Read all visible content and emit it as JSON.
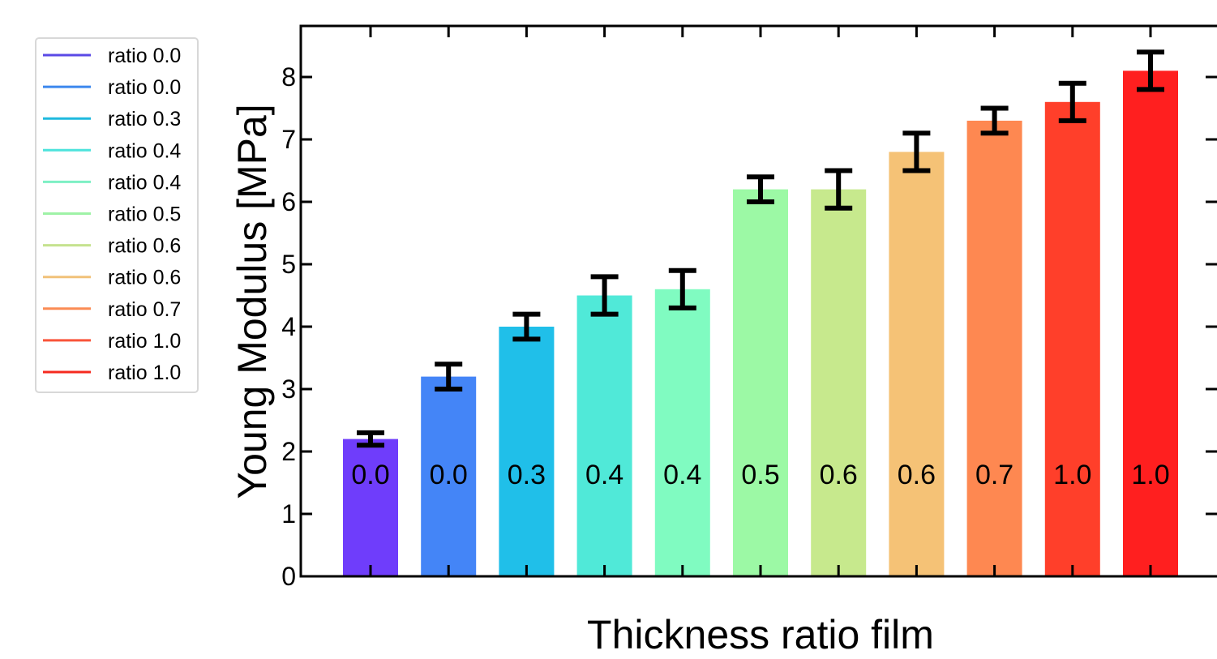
{
  "chart_data": {
    "type": "bar",
    "title": "",
    "xlabel": "Thickness ratio film",
    "ylabel": "Young Modulus [MPa]",
    "ylim": [
      0,
      8.8
    ],
    "yticks": [
      0,
      1,
      2,
      3,
      4,
      5,
      6,
      7,
      8
    ],
    "grid": false,
    "legend_position": "outside-left",
    "categories": [
      "0.0",
      "0.0",
      "0.3",
      "0.4",
      "0.4",
      "0.5",
      "0.6",
      "0.6",
      "0.7",
      "1.0",
      "1.0"
    ],
    "values": [
      2.2,
      3.2,
      4.0,
      4.5,
      4.6,
      6.2,
      6.2,
      6.8,
      7.3,
      7.6,
      8.1
    ],
    "errors": [
      0.1,
      0.2,
      0.2,
      0.3,
      0.3,
      0.2,
      0.3,
      0.3,
      0.2,
      0.3,
      0.3
    ],
    "bar_labels": [
      "0.0",
      "0.0",
      "0.3",
      "0.4",
      "0.4",
      "0.5",
      "0.6",
      "0.6",
      "0.7",
      "1.0",
      "1.0"
    ],
    "colors": [
      "#6f3dfb",
      "#4485f7",
      "#20bfe9",
      "#50e9d8",
      "#80fbc1",
      "#9cf9a5",
      "#c7e98d",
      "#f5c276",
      "#fe8851",
      "#ff3f2a",
      "#ff1f1f"
    ],
    "legend": [
      {
        "label": "ratio 0.0",
        "color": "#5a49e6"
      },
      {
        "label": "ratio 0.0",
        "color": "#3c88ee"
      },
      {
        "label": "ratio 0.3",
        "color": "#1fb9de"
      },
      {
        "label": "ratio 0.4",
        "color": "#4de3dc"
      },
      {
        "label": "ratio 0.4",
        "color": "#7ef0c4"
      },
      {
        "label": "ratio 0.5",
        "color": "#9ff2a6"
      },
      {
        "label": "ratio 0.6",
        "color": "#c5e28e"
      },
      {
        "label": "ratio 0.6",
        "color": "#f1c27a"
      },
      {
        "label": "ratio 0.7",
        "color": "#fb8b54"
      },
      {
        "label": "ratio 1.0",
        "color": "#f9553a"
      },
      {
        "label": "ratio 1.0",
        "color": "#f52a1f"
      }
    ]
  }
}
